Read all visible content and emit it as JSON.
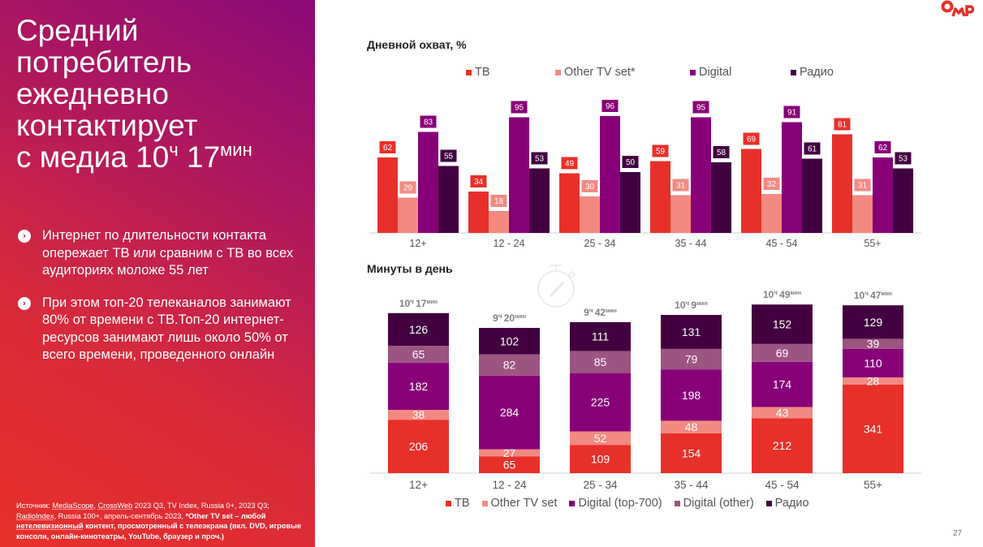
{
  "slide": {
    "headline_lines": [
      "Средний",
      "потребитель",
      "ежедневно",
      "контактирует"
    ],
    "headline_last_prefix": "с медиа 10",
    "headline_hours_unit": "ч",
    "headline_minutes": " 17",
    "headline_minutes_unit": "мин",
    "bullets": [
      "Интернет по длительности контакта опережает ТВ или сравним с ТВ во всех аудиториях моложе 55 лет",
      "При этом топ-20 телеканалов занимают 80% от времени с ТВ.Топ-20 интернет-ресурсов занимают лишь около 50% от всего времени, проведенного онлайн"
    ],
    "bullet_icon": "chevron-right-circle-icon",
    "source": {
      "prefix": "Источник: ",
      "link1": "MediaScope",
      "sep1": ", ",
      "link2": "CrossWeb",
      "mid": "  2023  Q3, TV Index, Russia 0+, 2023 Q3; ",
      "link3": "RadioIndex",
      "mid2": ", Russia 100+, апрель-сентябрь 2023,  ",
      "bold1": "*Other TV set – любой ",
      "bold_link": "нетелевизионный",
      "bold2": " контент, просмотренный с телеэкрана (вкл. DVD, игровые консоли, онлайн-кинотеатры, YouTube, браузер и проч.)"
    },
    "logo_text": "ОМР",
    "page_number": "27",
    "colors": {
      "tv": "#e8302a",
      "other_tv": "#f28a82",
      "digital": "#880078",
      "digital_other": "#9c5480",
      "radio": "#420040",
      "logo": "#e8302a"
    }
  },
  "chart_data": [
    {
      "type": "bar",
      "title": "Дневной охват, %",
      "categories": [
        "12+",
        "12 - 24",
        "25 - 34",
        "35 - 44",
        "45 - 54",
        "55+"
      ],
      "series": [
        {
          "name": "ТВ",
          "color": "#e8302a",
          "values": [
            62,
            34,
            49,
            59,
            69,
            81
          ]
        },
        {
          "name": "Other TV set*",
          "color": "#f28a82",
          "values": [
            29,
            18,
            30,
            31,
            32,
            31
          ]
        },
        {
          "name": "Digital",
          "color": "#880078",
          "values": [
            83,
            95,
            96,
            95,
            91,
            62
          ]
        },
        {
          "name": "Радио",
          "color": "#420040",
          "values": [
            55,
            53,
            50,
            58,
            61,
            53
          ]
        }
      ],
      "ylim": [
        0,
        100
      ],
      "grid": false,
      "legend": "top",
      "data_labels": true
    },
    {
      "type": "bar",
      "stacked": true,
      "title": "Минуты в день",
      "categories": [
        "12+",
        "12 - 24",
        "25 - 34",
        "35 - 44",
        "45 - 54",
        "55+"
      ],
      "totals": [
        {
          "h": "10",
          "m": "17"
        },
        {
          "h": "9",
          "m": "20"
        },
        {
          "h": "9",
          "m": "42"
        },
        {
          "h": "10",
          "m": "9"
        },
        {
          "h": "10",
          "m": "49"
        },
        {
          "h": "10",
          "m": "47"
        }
      ],
      "hours_unit": "ч",
      "minutes_unit": "мин",
      "series": [
        {
          "name": "ТВ",
          "color": "#e8302a",
          "values": [
            206,
            65,
            109,
            154,
            212,
            341
          ]
        },
        {
          "name": "Other TV set",
          "color": "#f28a82",
          "values": [
            38,
            27,
            52,
            48,
            43,
            28
          ]
        },
        {
          "name": "Digital (top-700)",
          "color": "#880078",
          "values": [
            182,
            284,
            225,
            198,
            174,
            110
          ]
        },
        {
          "name": "Digital (other)",
          "color": "#9c5480",
          "values": [
            65,
            82,
            85,
            79,
            69,
            39
          ]
        },
        {
          "name": "Радио",
          "color": "#420040",
          "values": [
            126,
            102,
            111,
            131,
            152,
            129
          ]
        }
      ],
      "grid": false,
      "legend": "bottom",
      "data_labels": true
    }
  ]
}
